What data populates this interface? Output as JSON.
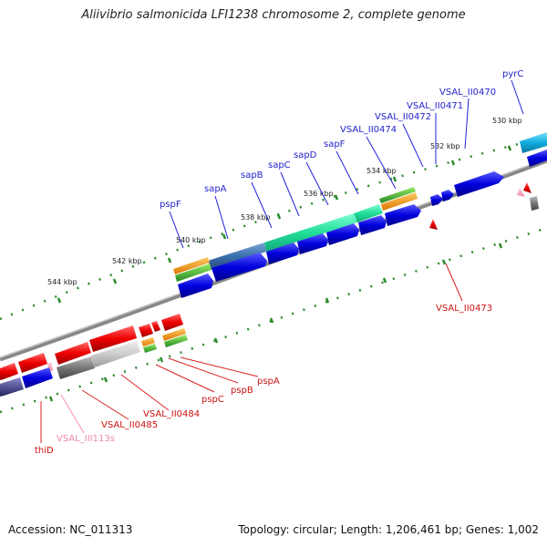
{
  "title": "Aliivibrio salmonicida LFI1238 chromosome 2, complete genome",
  "footer": {
    "accession": "Accession: NC_011313",
    "summary": "Topology: circular; Length: 1,206,461 bp; Genes: 1,002"
  },
  "ticks": [
    "530 kbp",
    "532 kbp",
    "534 kbp",
    "536 kbp",
    "538 kbp",
    "540 kbp",
    "542 kbp",
    "544 kbp"
  ],
  "labels": {
    "top": [
      "pspF",
      "sapA",
      "sapB",
      "sapC",
      "sapD",
      "sapF",
      "VSAL_II0474",
      "VSAL_II0472",
      "VSAL_II0471",
      "VSAL_II0470",
      "pyrC"
    ],
    "bottom": [
      "VSAL_II0473",
      "pspA",
      "pspB",
      "pspC",
      "VSAL_II0484",
      "VSAL_II0485",
      "VSAL_III113s",
      "thiD"
    ]
  },
  "colors": {
    "forward_cds": "#0000ee",
    "reverse_cds": "#ee0000",
    "rna": "#ff99bb",
    "backbone": "#888888",
    "tick": "#2a8a2a"
  }
}
